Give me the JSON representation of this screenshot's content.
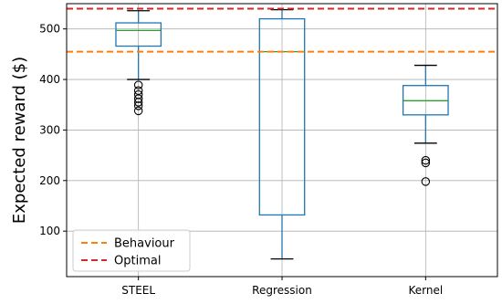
{
  "chart_data": {
    "type": "box",
    "title": "",
    "xlabel": "",
    "ylabel": "Expected reward ($)",
    "ylim": [
      10,
      550
    ],
    "yticks": [
      100,
      200,
      300,
      400,
      500
    ],
    "grid": true,
    "legend_position": "lower-left",
    "categories": [
      "STEEL",
      "Regression",
      "Kernel"
    ],
    "boxes": [
      {
        "category": "STEEL",
        "whisker_low": 400,
        "q1": 466,
        "median": 497,
        "q3": 512,
        "whisker_high": 536,
        "outliers": [
          389,
          378,
          370,
          362,
          355,
          348,
          338
        ]
      },
      {
        "category": "Regression",
        "whisker_low": 45,
        "q1": 132,
        "median": 455,
        "q3": 520,
        "whisker_high": 538,
        "outliers": []
      },
      {
        "category": "Kernel",
        "whisker_low": 274,
        "q1": 330,
        "median": 358,
        "q3": 388,
        "whisker_high": 428,
        "outliers": [
          240,
          235,
          198
        ]
      }
    ],
    "reference_lines": [
      {
        "name": "Behaviour",
        "value": 455,
        "color": "#ff7f0e",
        "style": "dashed"
      },
      {
        "name": "Optimal",
        "value": 540,
        "color": "#d62728",
        "style": "dashed"
      }
    ],
    "colors": {
      "box": "#1f77b4",
      "median": "#2ca02c",
      "grid": "#b0b0b0"
    }
  }
}
